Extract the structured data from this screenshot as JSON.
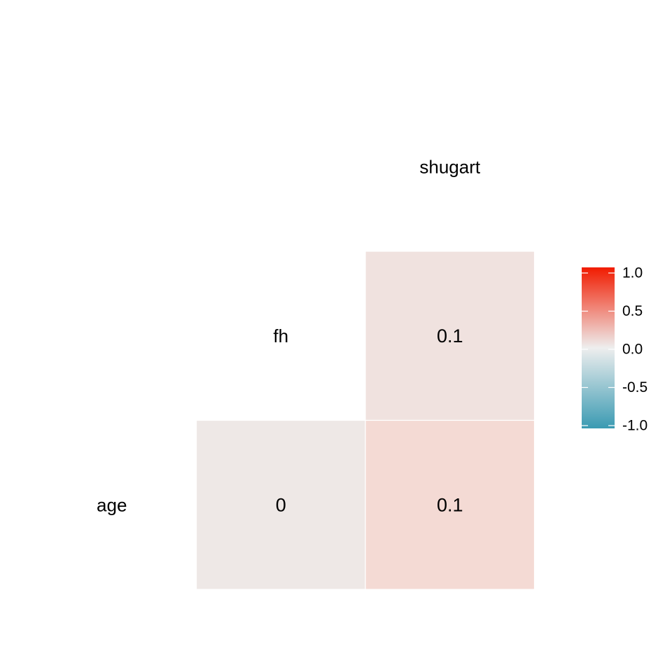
{
  "chart_data": {
    "type": "heatmap",
    "variables": [
      "age",
      "fh",
      "shugart"
    ],
    "diagonal_labels": [
      "age",
      "fh",
      "shugart"
    ],
    "cells": [
      {
        "row": "fh",
        "col": "shugart",
        "value": 0.1,
        "label": "0.1"
      },
      {
        "row": "age",
        "col": "fh",
        "value": 0.0,
        "label": "0"
      },
      {
        "row": "age",
        "col": "shugart",
        "value": 0.1,
        "label": "0.1"
      }
    ],
    "color_scale": {
      "low": "#3A9AB2",
      "mid": "#EEEEEE",
      "high": "#F11B00",
      "limits": [
        -1.0,
        1.0
      ]
    },
    "legend": {
      "position": "right",
      "breaks": [
        1.0,
        0.5,
        0.0,
        -0.5,
        -1.0
      ],
      "labels": [
        "1.0",
        "0.5",
        "0.0",
        "-0.5",
        "-1.0"
      ]
    },
    "cell_colors": {
      "fh_shugart": "#F0E2DF",
      "age_fh": "#EEE8E6",
      "age_shugart": "#F4DAD4"
    },
    "grid": false
  }
}
